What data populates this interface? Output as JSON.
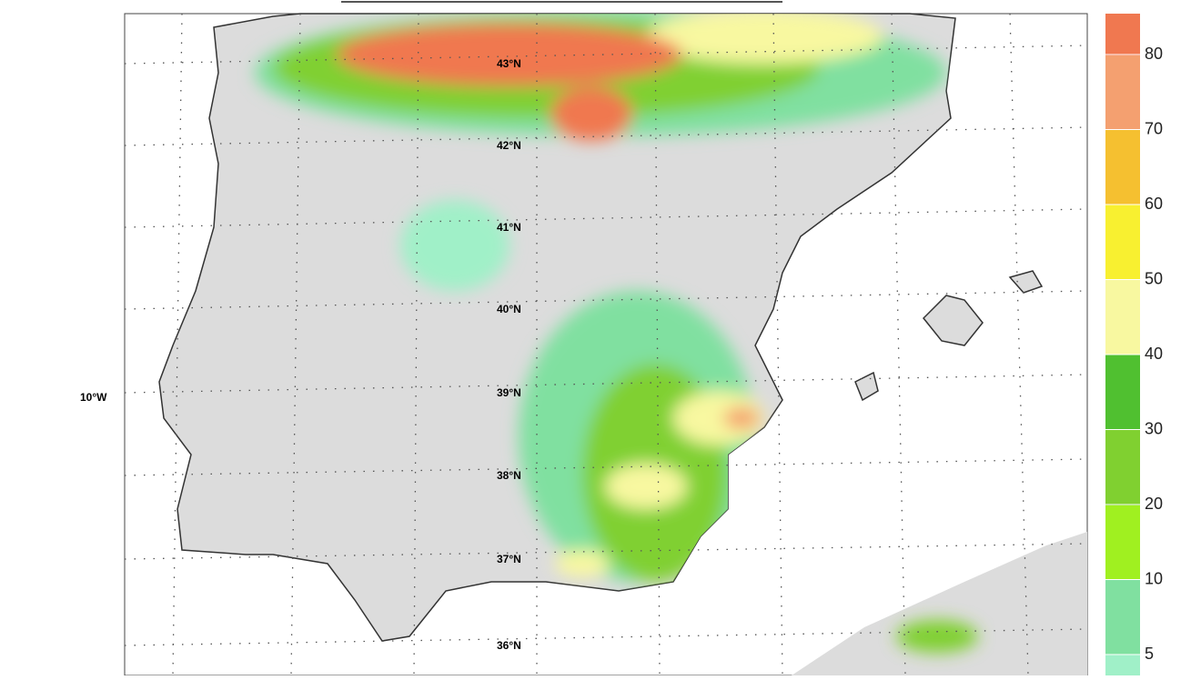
{
  "map": {
    "lat_labels": [
      "43°N",
      "42°N",
      "41°N",
      "40°N",
      "39°N",
      "38°N",
      "37°N",
      "36°N"
    ],
    "lon_label": "10°W"
  },
  "legend": {
    "ticks": [
      5,
      10,
      20,
      30,
      40,
      50,
      60,
      70,
      80
    ]
  }
}
